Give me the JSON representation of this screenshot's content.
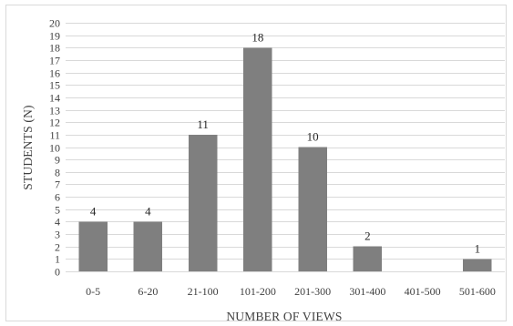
{
  "chart_data": {
    "type": "bar",
    "categories": [
      "0-5",
      "6-20",
      "21-100",
      "101-200",
      "201-300",
      "301-400",
      "401-500",
      "501-600"
    ],
    "values": [
      4,
      4,
      11,
      18,
      10,
      2,
      0,
      1
    ],
    "data_labels": [
      "4",
      "4",
      "11",
      "18",
      "10",
      "2",
      "",
      "1"
    ],
    "xlabel": "NUMBER OF VIEWS",
    "ylabel": "STUDENTS (N)",
    "ylim": [
      0,
      20
    ],
    "ystep": 1,
    "grid": true,
    "legend": "none",
    "bar_color": "#7f7f7f",
    "grid_color": "#d9d9d9"
  }
}
